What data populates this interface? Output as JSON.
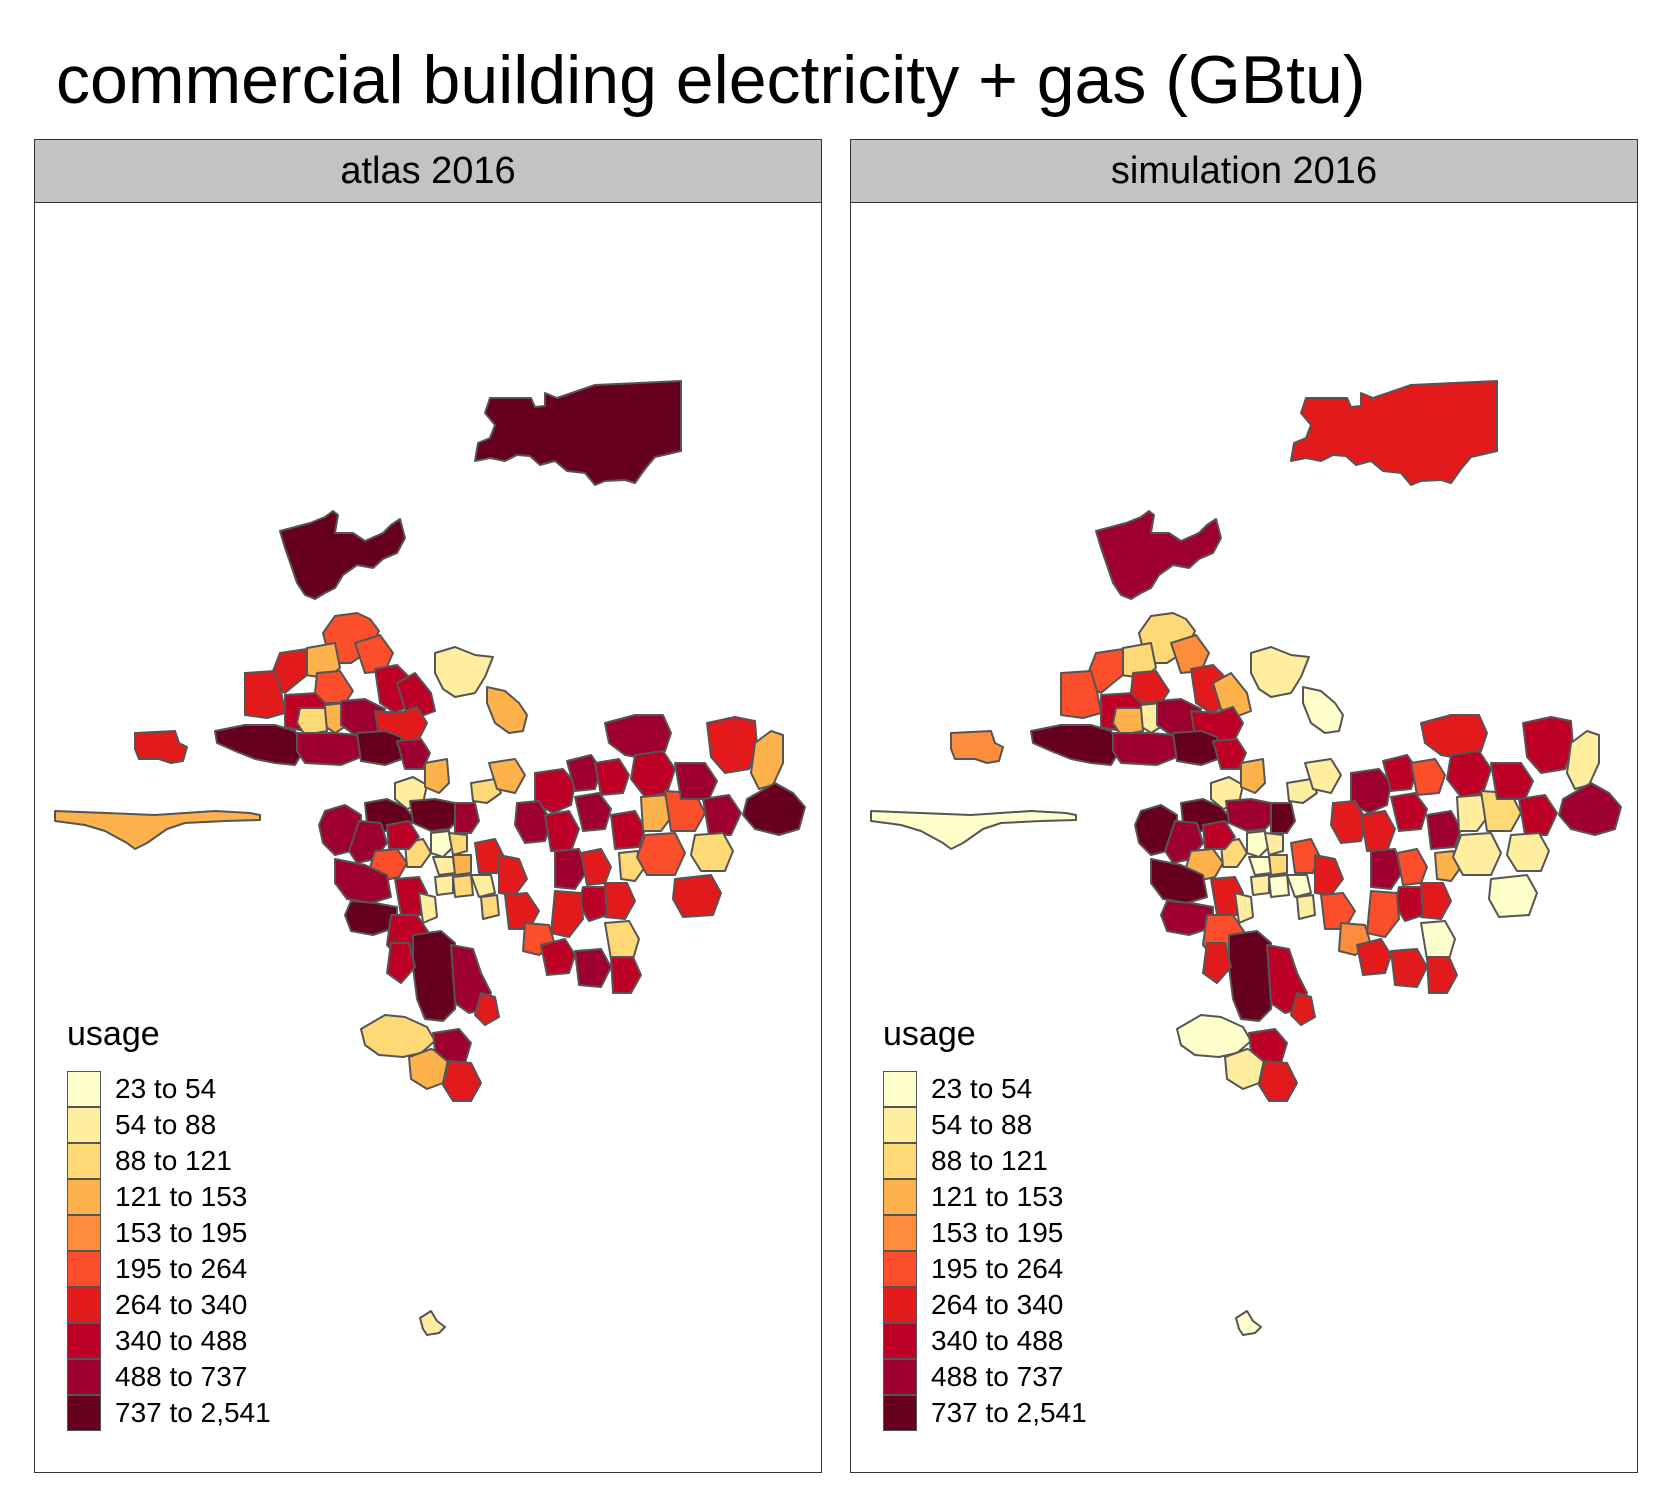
{
  "title": "commercial building electricity + gas (GBtu)",
  "legend_title": "usage",
  "classes": [
    {
      "label": "23 to 54",
      "color": "#ffffcc"
    },
    {
      "label": "54 to 88",
      "color": "#ffeda0"
    },
    {
      "label": "88 to 121",
      "color": "#fed976"
    },
    {
      "label": "121 to 153",
      "color": "#feb24c"
    },
    {
      "label": "153 to 195",
      "color": "#fd8d3c"
    },
    {
      "label": "195 to 264",
      "color": "#fc4e2a"
    },
    {
      "label": "264 to 340",
      "color": "#e31a1c"
    },
    {
      "label": "340 to 488",
      "color": "#bd0026"
    },
    {
      "label": "488 to 737",
      "color": "#9e0030"
    },
    {
      "label": "737 to 2,541",
      "color": "#67001f"
    }
  ],
  "panels": [
    {
      "label": "atlas 2016"
    },
    {
      "label": "simulation 2016"
    }
  ]
}
